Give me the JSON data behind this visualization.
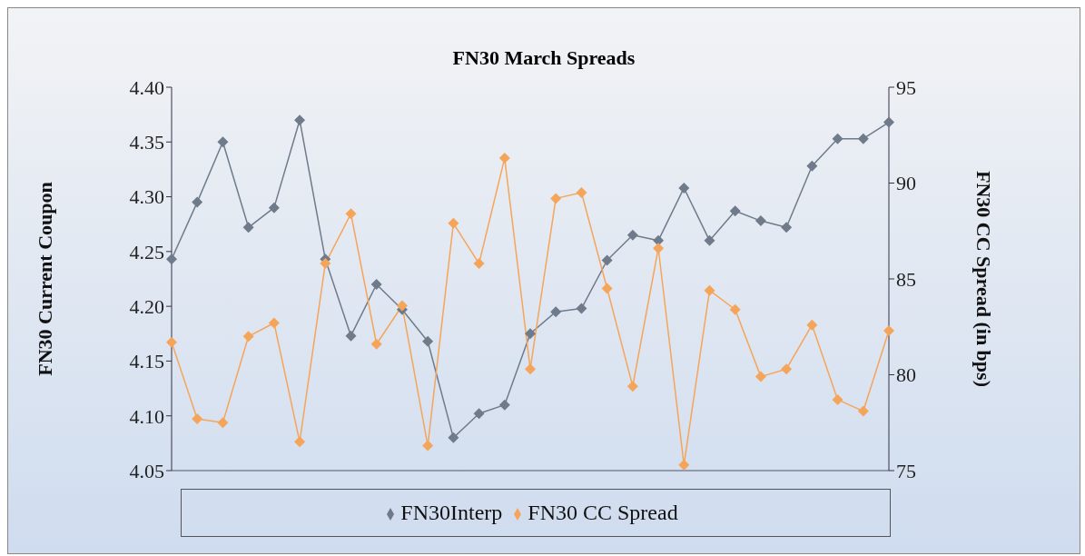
{
  "chart_data": {
    "type": "line",
    "title": "FN30 March Spreads",
    "ylabel": "FN30 Current Coupon",
    "y2label": "FN30 CC Spread (in bps)",
    "categories": [
      null,
      null,
      null,
      null,
      null,
      null,
      null,
      null,
      null,
      null,
      null,
      null,
      null,
      null,
      null,
      null,
      null,
      null,
      null,
      null,
      null,
      null,
      null,
      null,
      null,
      null,
      null,
      null,
      null
    ],
    "series": [
      {
        "name": "FN30Interp",
        "color": "#6f7b8a",
        "values": [
          4.243,
          4.295,
          4.35,
          4.272,
          4.29,
          4.37,
          4.243,
          4.173,
          4.22,
          4.197,
          4.168,
          4.08,
          4.102,
          4.11,
          4.175,
          4.195,
          4.198,
          4.242,
          4.265,
          4.26,
          4.308,
          4.26,
          4.287,
          4.278,
          4.272,
          4.328,
          4.353,
          4.353,
          4.368
        ]
      },
      {
        "name": "FN30 CC Spread",
        "color": "#f5a55a",
        "axis": "y2",
        "values": [
          81.7,
          77.7,
          77.5,
          82,
          82.7,
          76.5,
          85.8,
          88.4,
          81.6,
          83.6,
          76.3,
          87.9,
          85.8,
          91.3,
          80.3,
          89.2,
          89.5,
          84.5,
          79.4,
          86.6,
          75.3,
          84.4,
          83.4,
          79.9,
          80.3,
          82.6,
          78.7,
          78.1,
          82.3
        ]
      }
    ],
    "ylim": [
      4.05,
      4.4
    ],
    "yticks": [
      {
        "value": 4.05,
        "label": "4.05"
      },
      {
        "value": 4.1,
        "label": "4.10"
      },
      {
        "value": 4.15,
        "label": "4.15"
      },
      {
        "value": 4.2,
        "label": "4.20"
      },
      {
        "value": 4.25,
        "label": "4.25"
      },
      {
        "value": 4.3,
        "label": "4.30"
      },
      {
        "value": 4.35,
        "label": "4.35"
      },
      {
        "value": 4.4,
        "label": "4.40"
      }
    ],
    "y2lim": [
      75,
      95
    ],
    "y2ticks": [
      75,
      80,
      85,
      90,
      95
    ],
    "grid": false,
    "legend": "bottom",
    "marker": "diamond",
    "line_style": "solid"
  }
}
